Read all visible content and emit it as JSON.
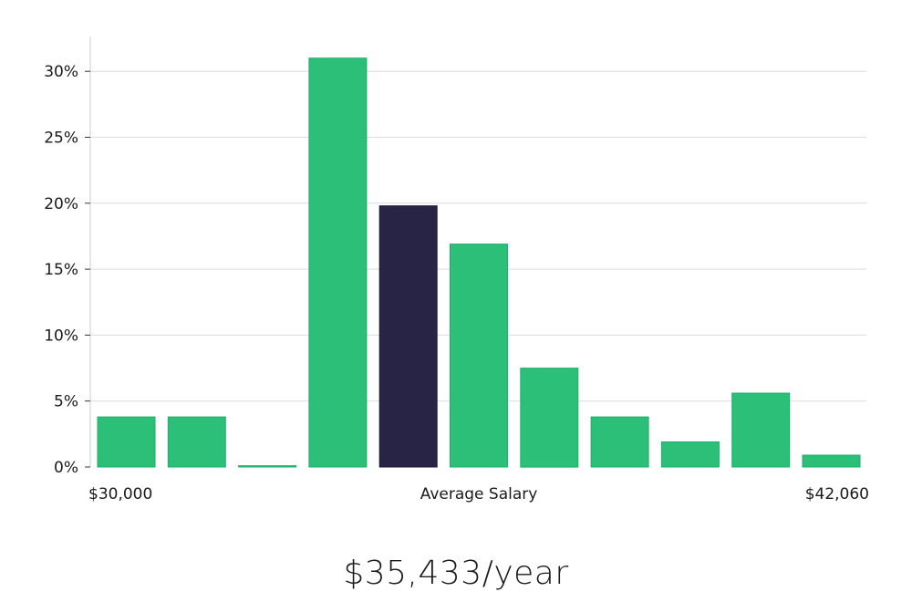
{
  "chart_data": {
    "type": "bar",
    "title": "",
    "xlabel": "Average Salary",
    "ylabel": "",
    "x_start_label": "$30,000",
    "x_end_label": "$42,060",
    "ylim": [
      0,
      32
    ],
    "yticks": [
      0,
      5,
      10,
      15,
      20,
      25,
      30
    ],
    "ytick_labels": [
      "0%",
      "5%",
      "10%",
      "15%",
      "20%",
      "25%",
      "30%"
    ],
    "values": [
      3.8,
      3.8,
      0.1,
      31.0,
      19.8,
      16.9,
      7.5,
      3.8,
      1.9,
      5.6,
      0.9
    ],
    "highlight_index": 4,
    "colors": {
      "bar": "#2bbf78",
      "highlight": "#272445",
      "grid": "#dcdcdc",
      "axis": "#cccccc"
    }
  },
  "summary": {
    "average_salary": "$35,433/year"
  }
}
